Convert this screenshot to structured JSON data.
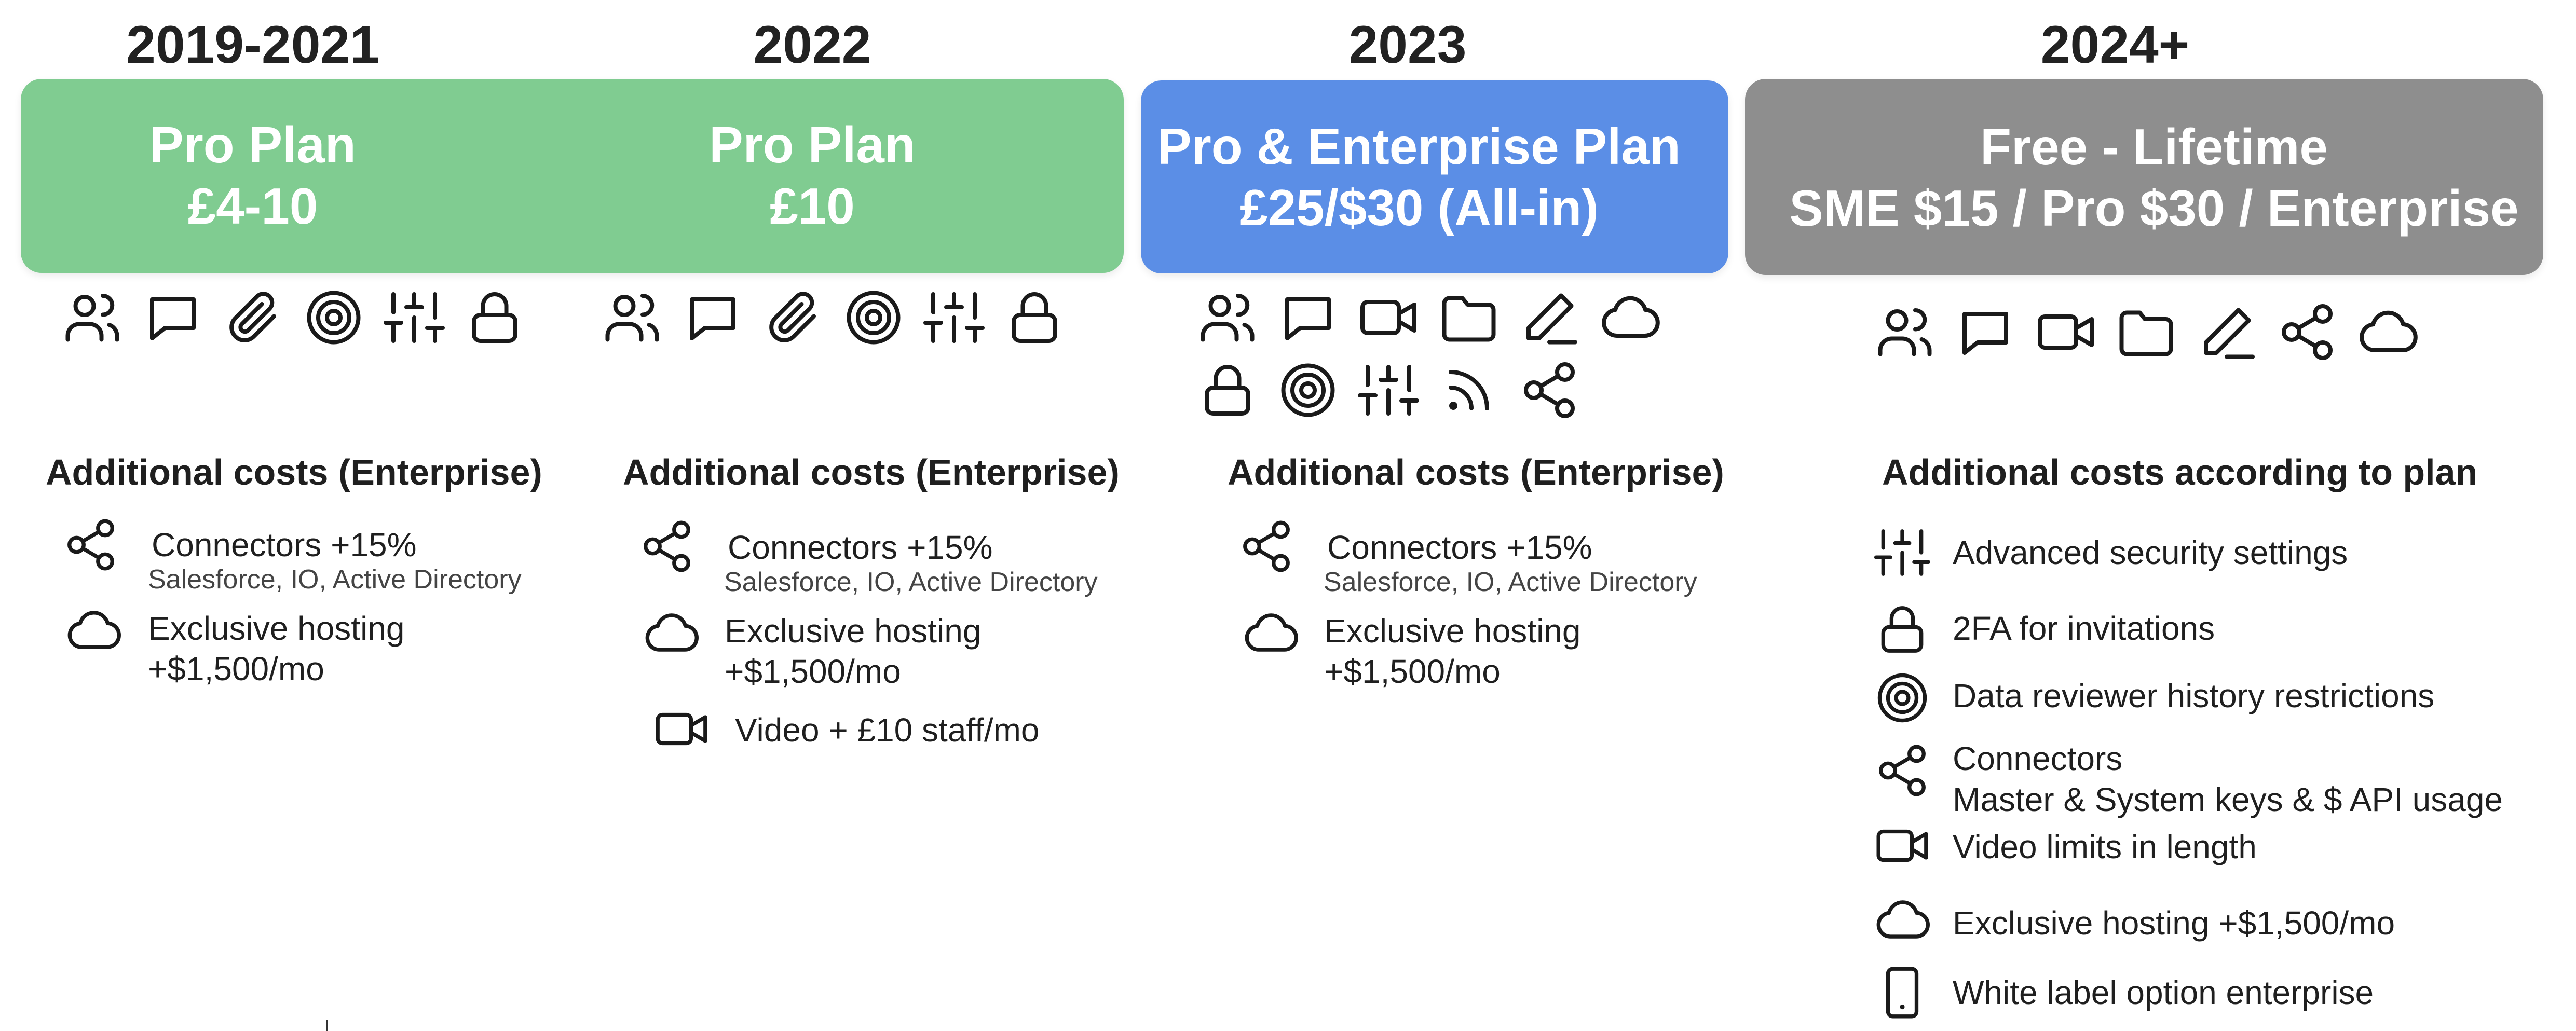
{
  "colors": {
    "green": "#80cc91",
    "blue": "#5b8ee6",
    "gray": "#8e8e8e"
  },
  "periods": [
    {
      "year": "2019-2021",
      "plan_name": "Pro Plan",
      "price": "£4-10",
      "icons": [
        "users-icon",
        "chat-icon",
        "paperclip-icon",
        "target-icon",
        "sliders-icon",
        "lock-icon"
      ]
    },
    {
      "year": "2022",
      "plan_name": "Pro Plan",
      "price": "£10",
      "icons": [
        "users-icon",
        "chat-icon",
        "paperclip-icon",
        "target-icon",
        "sliders-icon",
        "lock-icon"
      ]
    },
    {
      "year": "2023",
      "plan_name": "Pro & Enterprise Plan",
      "price": "£25/$30 (All-in)",
      "icons": [
        "users-icon",
        "chat-icon",
        "video-icon",
        "folder-icon",
        "pen-icon",
        "cloud-icon",
        "lock-icon",
        "target-icon",
        "sliders-icon",
        "rss-icon",
        "share-icon"
      ]
    },
    {
      "year": "2024+",
      "plan_name": "Free - Lifetime",
      "price": "SME $15 / Pro $30 / Enterprise",
      "icons": [
        "users-icon",
        "chat-icon",
        "video-icon",
        "folder-icon",
        "pen-icon",
        "share-icon",
        "cloud-icon"
      ]
    }
  ],
  "costs": [
    {
      "heading": "Additional costs (Enterprise)",
      "items": [
        {
          "icon": "share-icon",
          "text": "Connectors +15%",
          "sub": "Salesforce, IO, Active Directory"
        },
        {
          "icon": "cloud-icon",
          "text": "Exclusive hosting",
          "sub": "+$1,500/mo"
        }
      ]
    },
    {
      "heading": "Additional costs (Enterprise)",
      "items": [
        {
          "icon": "share-icon",
          "text": "Connectors +15%",
          "sub": "Salesforce, IO, Active Directory"
        },
        {
          "icon": "cloud-icon",
          "text": "Exclusive hosting",
          "sub": "+$1,500/mo"
        },
        {
          "icon": "video-icon",
          "text": "Video + £10 staff/mo"
        }
      ]
    },
    {
      "heading": "Additional costs (Enterprise)",
      "items": [
        {
          "icon": "share-icon",
          "text": "Connectors +15%",
          "sub": "Salesforce, IO, Active Directory"
        },
        {
          "icon": "cloud-icon",
          "text": "Exclusive hosting",
          "sub": "+$1,500/mo"
        }
      ]
    },
    {
      "heading": "Additional costs according to plan",
      "items": [
        {
          "icon": "sliders-icon",
          "text": "Advanced security settings"
        },
        {
          "icon": "lock-icon",
          "text": "2FA for invitations"
        },
        {
          "icon": "target-icon",
          "text": "Data reviewer history restrictions"
        },
        {
          "icon": "share-icon",
          "text": "Connectors",
          "sub": "Master & System keys & $ API usage"
        },
        {
          "icon": "video-icon",
          "text": "Video limits in length"
        },
        {
          "icon": "cloud-icon",
          "text": "Exclusive hosting +$1,500/mo"
        },
        {
          "icon": "phone-icon",
          "text": "White label option enterprise"
        }
      ]
    }
  ]
}
